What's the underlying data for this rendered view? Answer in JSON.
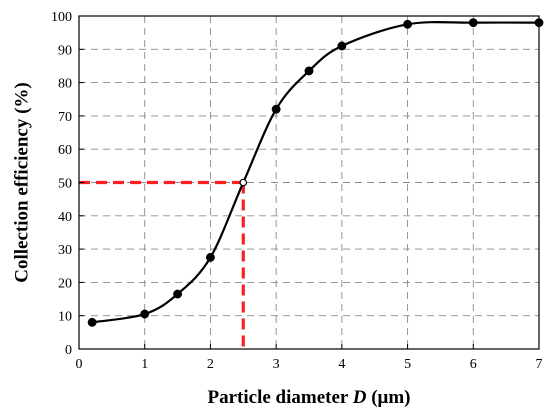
{
  "chart_data": {
    "type": "line",
    "title": "",
    "xlabel_prefix": "Particle diameter ",
    "xlabel_var": "D",
    "xlabel_suffix": " (μm)",
    "ylabel": "Collection efficiency (%)",
    "xlim": [
      0,
      7
    ],
    "ylim": [
      0,
      100
    ],
    "xticks": [
      0,
      1,
      2,
      3,
      4,
      5,
      6,
      7
    ],
    "yticks": [
      0,
      10,
      20,
      30,
      40,
      50,
      60,
      70,
      80,
      90,
      100
    ],
    "grid": true,
    "grid_style": "dashed",
    "legend": "none",
    "series": [
      {
        "color": "#000000",
        "marker": "filled-circle",
        "x": [
          0.2,
          1.0,
          1.5,
          2.0,
          2.5,
          3.0,
          3.5,
          4.0,
          5.0,
          6.0,
          7.0
        ],
        "y": [
          8.0,
          10.5,
          16.5,
          27.5,
          50.0,
          72.0,
          83.5,
          91.0,
          97.5,
          98.0,
          98.0
        ]
      }
    ],
    "reference_lines": {
      "color": "#ff1f1f",
      "style": "dashed",
      "x": 2.5,
      "y": 50
    },
    "open_marker": {
      "x": 2.5,
      "y": 50
    }
  }
}
